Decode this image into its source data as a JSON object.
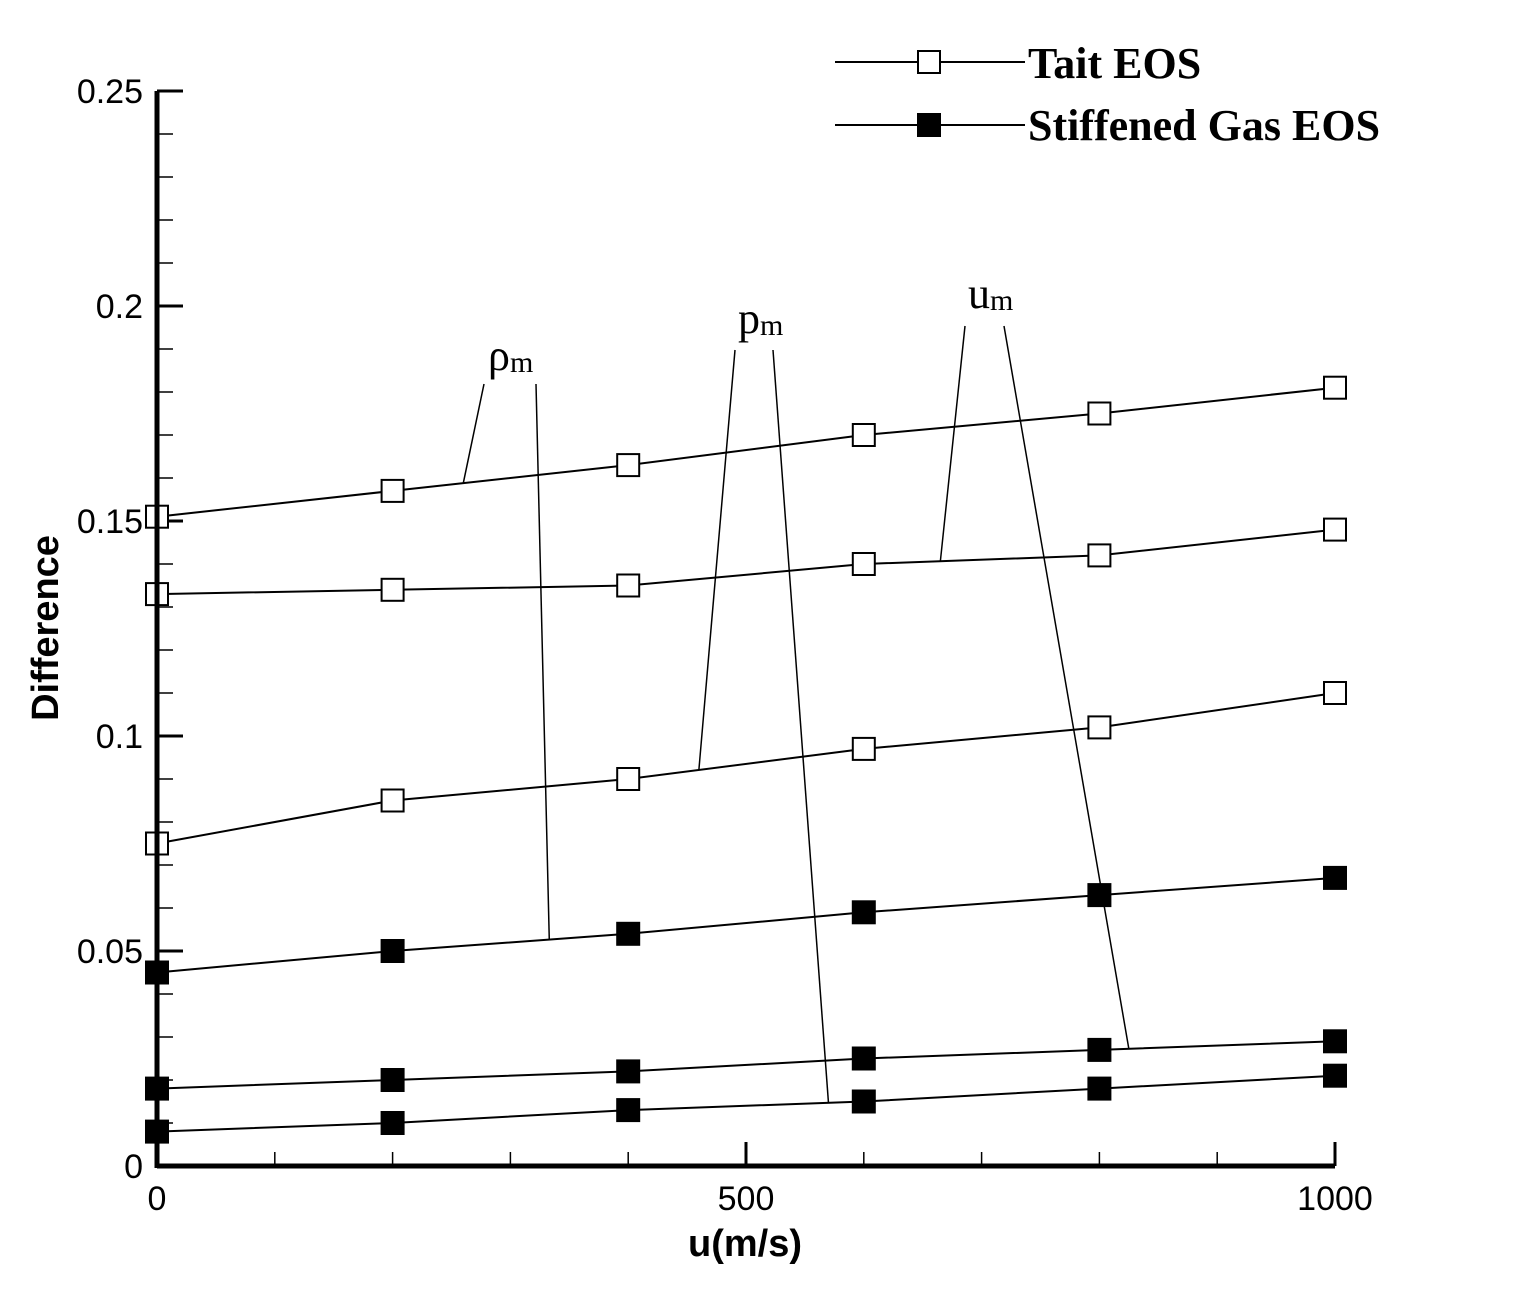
{
  "chart_data": {
    "type": "line",
    "xlabel": "u(m/s)",
    "ylabel": "Difference",
    "xlim": [
      0,
      1000
    ],
    "ylim": [
      0,
      0.25
    ],
    "x_ticks": [
      "0",
      "500",
      "1000"
    ],
    "y_ticks": [
      "0",
      "0.05",
      "0.1",
      "0.15",
      "0.2",
      "0.25"
    ],
    "x": [
      0,
      200,
      400,
      600,
      800,
      1000
    ],
    "legend_position": "top-right",
    "legend": [
      {
        "label": "Tait EOS",
        "marker": "open-square"
      },
      {
        "label": "Stiffened Gas EOS",
        "marker": "filled-square"
      }
    ],
    "series": [
      {
        "group": "Tait EOS",
        "quantity": "ρm",
        "values": [
          0.151,
          0.157,
          0.163,
          0.17,
          0.175,
          0.181
        ]
      },
      {
        "group": "Tait EOS",
        "quantity": "um",
        "values": [
          0.133,
          0.134,
          0.135,
          0.14,
          0.142,
          0.148
        ]
      },
      {
        "group": "Tait EOS",
        "quantity": "pm",
        "values": [
          0.075,
          0.085,
          0.09,
          0.097,
          0.102,
          0.11
        ]
      },
      {
        "group": "Stiffened Gas EOS",
        "quantity": "ρm",
        "values": [
          0.045,
          0.05,
          0.054,
          0.059,
          0.063,
          0.067
        ]
      },
      {
        "group": "Stiffened Gas EOS",
        "quantity": "um",
        "values": [
          0.018,
          0.02,
          0.022,
          0.025,
          0.027,
          0.029
        ]
      },
      {
        "group": "Stiffened Gas EOS",
        "quantity": "pm",
        "values": [
          0.008,
          0.01,
          0.013,
          0.015,
          0.018,
          0.021
        ]
      }
    ],
    "annotations": [
      {
        "base": "ρ",
        "sub": "m"
      },
      {
        "base": "p",
        "sub": "m"
      },
      {
        "base": "u",
        "sub": "m"
      }
    ]
  }
}
